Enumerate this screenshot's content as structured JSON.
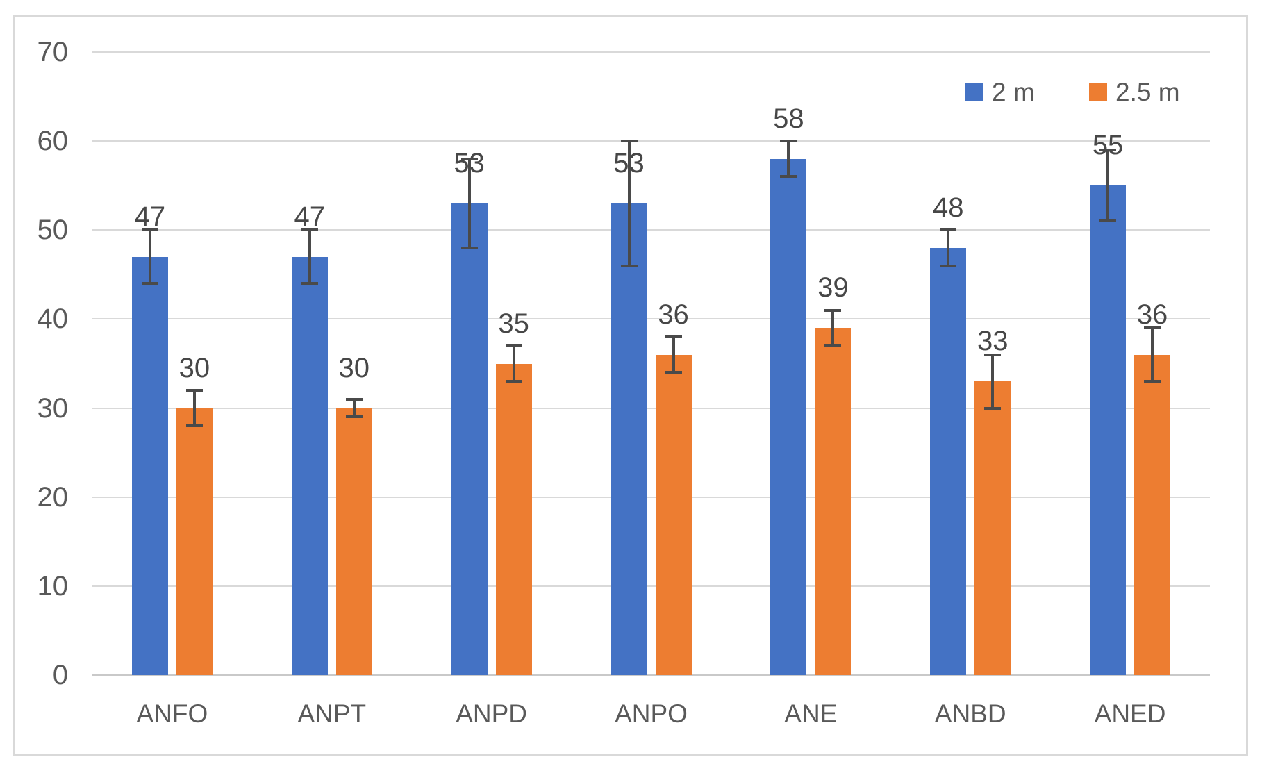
{
  "chart_data": {
    "type": "bar",
    "title": "",
    "categories": [
      "ANFO",
      "ANPT",
      "ANPD",
      "ANPO",
      "ANE",
      "ANBD",
      "ANED"
    ],
    "series": [
      {
        "name": "2 m",
        "color": "#4472C4",
        "values": [
          47,
          47,
          53,
          53,
          58,
          48,
          55
        ],
        "errors": [
          3,
          3,
          5,
          7,
          2,
          2,
          4
        ]
      },
      {
        "name": "2.5 m",
        "color": "#ED7D31",
        "values": [
          30,
          30,
          35,
          36,
          39,
          33,
          36
        ],
        "errors": [
          2,
          1,
          2,
          2,
          2,
          3,
          3
        ]
      }
    ],
    "ylim": [
      0,
      70
    ],
    "yticks": [
      0,
      10,
      20,
      30,
      40,
      50,
      60,
      70
    ],
    "xlabel": "",
    "ylabel": "",
    "grid": true,
    "error_bars": true,
    "data_labels": true,
    "legend_position": "top-right"
  },
  "colors": {
    "background": "#ffffff",
    "frame_border": "#d9d9d9",
    "gridline": "#d9d9d9",
    "axis_line": "#c9c9c9",
    "tick_label": "#595959",
    "data_label": "#474747",
    "error_bar": "#4a4a4a",
    "series_2m": "#4472C4",
    "series_2_5m": "#ED7D31"
  }
}
